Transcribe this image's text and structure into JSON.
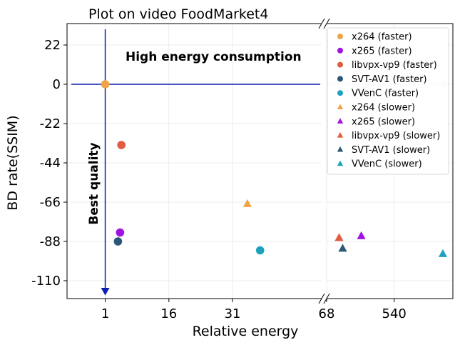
{
  "chart_data": {
    "type": "scatter",
    "title": "Plot on video FoodMarket4",
    "xlabel": "Relative energy",
    "ylabel": "BD rate(SSIM)",
    "x_axis": {
      "broken": true,
      "left_segment": {
        "xlim": [
          -8,
          52
        ],
        "ticks": [
          1,
          16,
          31
        ]
      },
      "right_segment": {
        "xlim": [
          68,
          950
        ],
        "ticks": [
          68,
          540
        ]
      }
    },
    "ylim": [
      -120,
      34
    ],
    "yticks": [
      22,
      0,
      -22,
      -44,
      -66,
      -88,
      -110
    ],
    "grid": true,
    "legend": {
      "position": "top-right"
    },
    "annotations": [
      {
        "text": "High energy consumption",
        "bold": true
      },
      {
        "text": "Best quality",
        "bold": true,
        "rotated": true
      }
    ],
    "reference_point": {
      "x": 1,
      "y": 0
    },
    "series": [
      {
        "name": "x264 (faster)",
        "marker": "circle",
        "color": "#f0a44a",
        "points": [
          {
            "x": 1,
            "y": 0
          }
        ]
      },
      {
        "name": "x265 (faster)",
        "marker": "circle",
        "color": "#a012e0",
        "points": [
          {
            "x": 4.5,
            "y": -83
          }
        ]
      },
      {
        "name": "libvpx-vp9 (faster)",
        "marker": "circle",
        "color": "#e05b41",
        "points": [
          {
            "x": 4.8,
            "y": -34
          }
        ]
      },
      {
        "name": "SVT-AV1 (faster)",
        "marker": "circle",
        "color": "#2b5877",
        "points": [
          {
            "x": 4.0,
            "y": -88
          }
        ]
      },
      {
        "name": "VVenC (faster)",
        "marker": "circle",
        "color": "#1ba3bb",
        "points": [
          {
            "x": 37.5,
            "y": -93
          }
        ]
      },
      {
        "name": "x264 (slower)",
        "marker": "triangle",
        "color": "#f0a44a",
        "points": [
          {
            "x": 34.5,
            "y": -67
          }
        ]
      },
      {
        "name": "x265 (slower)",
        "marker": "triangle",
        "color": "#a012e0",
        "points": [
          {
            "x": 310,
            "y": -85
          }
        ]
      },
      {
        "name": "libvpx-vp9 (slower)",
        "marker": "triangle",
        "color": "#e05b41",
        "points": [
          {
            "x": 155,
            "y": -86
          }
        ]
      },
      {
        "name": "SVT-AV1 (slower)",
        "marker": "triangle",
        "color": "#2b5877",
        "points": [
          {
            "x": 180,
            "y": -92
          }
        ]
      },
      {
        "name": "VVenC (slower)",
        "marker": "triangle",
        "color": "#1ba3bb",
        "points": [
          {
            "x": 880,
            "y": -95
          }
        ]
      }
    ]
  }
}
